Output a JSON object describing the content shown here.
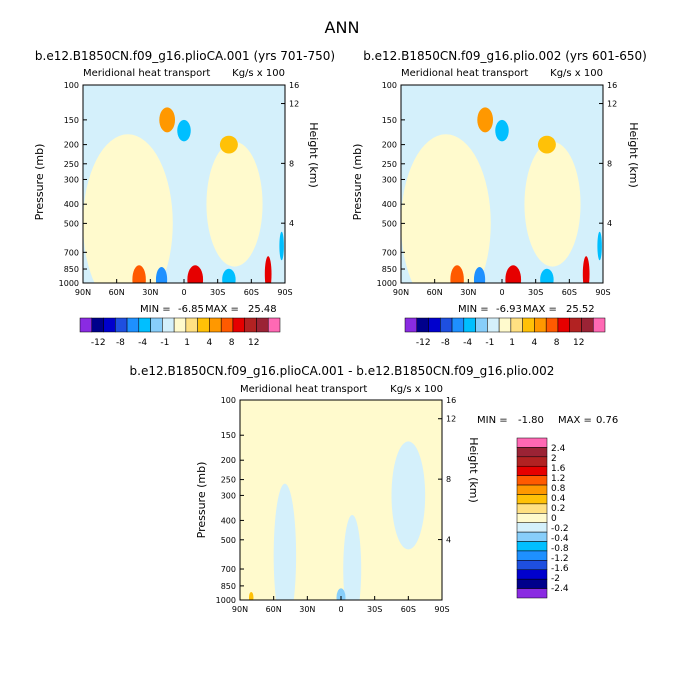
{
  "page_title": "ANN",
  "palette": {
    "main": [
      "#8a2be2",
      "#00008b",
      "#0000cd",
      "#1e4fe0",
      "#1e90ff",
      "#00bfff",
      "#87cefa",
      "#d4f0fb",
      "#fffacd",
      "#ffe082",
      "#ffc107",
      "#ff9800",
      "#ff5a00",
      "#e60000",
      "#b22222",
      "#9b2335",
      "#ff69b4"
    ],
    "diff": [
      "#8a2be2",
      "#00008b",
      "#0000cd",
      "#1e4fe0",
      "#1e90ff",
      "#00bfff",
      "#87cefa",
      "#d4f0fb",
      "#fffacd",
      "#ffe082",
      "#ffc107",
      "#ff9800",
      "#ff5a00",
      "#e60000",
      "#b22222",
      "#9b2335",
      "#ff69b4"
    ]
  },
  "chart_data": [
    {
      "type": "heatmap",
      "id": "p1",
      "title": "b.e12.B1850CN.f09_g16.plioCA.001 (yrs 701-750)",
      "subtitle_left": "Meridional heat transport",
      "subtitle_right": "Kg/s x 100",
      "xlabel": "",
      "ylabel": "Pressure (mb)",
      "ylabel_right": "Height (km)",
      "x_ticks": [
        "90N",
        "60N",
        "30N",
        "0",
        "30S",
        "60S",
        "90S"
      ],
      "x_tick_values": [
        90,
        60,
        30,
        0,
        -30,
        -60,
        -90
      ],
      "y_ticks": [
        "100",
        "150",
        "200",
        "250",
        "300",
        "400",
        "500",
        "700",
        "850",
        "1000"
      ],
      "y_tick_values": [
        100,
        150,
        200,
        250,
        300,
        400,
        500,
        700,
        850,
        1000
      ],
      "y_right_ticks": [
        "16",
        "12",
        "8",
        "4"
      ],
      "y_right_values": [
        16,
        12,
        8,
        4
      ],
      "min_label": "MIN =",
      "min_value": "-6.85",
      "max_label": "MAX =",
      "max_value": "25.48",
      "colorbar_labels": [
        "-12",
        "-8",
        "-4",
        "-1",
        "1",
        "4",
        "8",
        "12"
      ],
      "background": "#d4f0fb",
      "blobs": [
        {
          "lat": 15,
          "p": 150,
          "w": 7,
          "h": 70,
          "c": 11
        },
        {
          "lat": 0,
          "p": 170,
          "w": 6,
          "h": 60,
          "c": 5
        },
        {
          "lat": -40,
          "p": 200,
          "w": 8,
          "h": 50,
          "c": 10
        },
        {
          "lat": 40,
          "p": 960,
          "w": 6,
          "h": 80,
          "c": 12
        },
        {
          "lat": 20,
          "p": 960,
          "w": 5,
          "h": 70,
          "c": 4
        },
        {
          "lat": -10,
          "p": 960,
          "w": 7,
          "h": 80,
          "c": 13
        },
        {
          "lat": -40,
          "p": 960,
          "w": 6,
          "h": 60,
          "c": 5
        },
        {
          "lat": -75,
          "p": 900,
          "w": 3,
          "h": 100,
          "c": 13
        },
        {
          "lat": -87,
          "p": 650,
          "w": 2,
          "h": 80,
          "c": 5
        }
      ],
      "yellow_regions": [
        {
          "lat": 50,
          "p": 500,
          "w": 40,
          "h": 500,
          "c": 8
        },
        {
          "lat": -45,
          "p": 400,
          "w": 25,
          "h": 350,
          "c": 8
        }
      ]
    },
    {
      "type": "heatmap",
      "id": "p2",
      "title": "b.e12.B1850CN.f09_g16.plio.002 (yrs 601-650)",
      "subtitle_left": "Meridional heat transport",
      "subtitle_right": "Kg/s x 100",
      "xlabel": "",
      "ylabel": "Pressure (mb)",
      "ylabel_right": "Height (km)",
      "x_ticks": [
        "90N",
        "60N",
        "30N",
        "0",
        "30S",
        "60S",
        "90S"
      ],
      "x_tick_values": [
        90,
        60,
        30,
        0,
        -30,
        -60,
        -90
      ],
      "y_ticks": [
        "100",
        "150",
        "200",
        "250",
        "300",
        "400",
        "500",
        "700",
        "850",
        "1000"
      ],
      "y_tick_values": [
        100,
        150,
        200,
        250,
        300,
        400,
        500,
        700,
        850,
        1000
      ],
      "y_right_ticks": [
        "16",
        "12",
        "8",
        "4"
      ],
      "y_right_values": [
        16,
        12,
        8,
        4
      ],
      "min_label": "MIN =",
      "min_value": "-6.93",
      "max_label": "MAX =",
      "max_value": "25.52",
      "colorbar_labels": [
        "-12",
        "-8",
        "-4",
        "-1",
        "1",
        "4",
        "8",
        "12"
      ],
      "background": "#d4f0fb",
      "blobs": [
        {
          "lat": 15,
          "p": 150,
          "w": 7,
          "h": 70,
          "c": 11
        },
        {
          "lat": 0,
          "p": 170,
          "w": 6,
          "h": 60,
          "c": 5
        },
        {
          "lat": -40,
          "p": 200,
          "w": 8,
          "h": 50,
          "c": 10
        },
        {
          "lat": 40,
          "p": 960,
          "w": 6,
          "h": 80,
          "c": 12
        },
        {
          "lat": 20,
          "p": 960,
          "w": 5,
          "h": 70,
          "c": 4
        },
        {
          "lat": -10,
          "p": 960,
          "w": 7,
          "h": 80,
          "c": 13
        },
        {
          "lat": -40,
          "p": 960,
          "w": 6,
          "h": 60,
          "c": 5
        },
        {
          "lat": -75,
          "p": 900,
          "w": 3,
          "h": 100,
          "c": 13
        },
        {
          "lat": -87,
          "p": 650,
          "w": 2,
          "h": 80,
          "c": 5
        }
      ],
      "yellow_regions": [
        {
          "lat": 50,
          "p": 500,
          "w": 40,
          "h": 500,
          "c": 8
        },
        {
          "lat": -45,
          "p": 400,
          "w": 25,
          "h": 350,
          "c": 8
        }
      ]
    },
    {
      "type": "heatmap",
      "id": "p3",
      "title": "b.e12.B1850CN.f09_g16.plioCA.001 - b.e12.B1850CN.f09_g16.plio.002",
      "subtitle_left": "Meridional heat transport",
      "subtitle_right": "Kg/s x 100",
      "xlabel": "",
      "ylabel": "Pressure (mb)",
      "ylabel_right": "Height (km)",
      "x_ticks": [
        "90N",
        "60N",
        "30N",
        "0",
        "30S",
        "60S",
        "90S"
      ],
      "x_tick_values": [
        90,
        60,
        30,
        0,
        -30,
        -60,
        -90
      ],
      "y_ticks": [
        "100",
        "150",
        "200",
        "250",
        "300",
        "400",
        "500",
        "700",
        "850",
        "1000"
      ],
      "y_tick_values": [
        100,
        150,
        200,
        250,
        300,
        400,
        500,
        700,
        850,
        1000
      ],
      "y_right_ticks": [
        "16",
        "12",
        "8",
        "4"
      ],
      "y_right_values": [
        16,
        12,
        8,
        4
      ],
      "min_label": "MIN =",
      "min_value": "-1.80",
      "max_label": "MAX =",
      "max_value": "0.76",
      "colorbar_labels": [
        "2.4",
        "2",
        "1.6",
        "1.2",
        "0.8",
        "0.4",
        "0.2",
        "0",
        "-0.2",
        "-0.4",
        "-0.8",
        "-1.2",
        "-1.6",
        "-2",
        "-2.4"
      ],
      "background": "#fffacd",
      "blobs": [
        {
          "lat": 0,
          "p": 970,
          "w": 4,
          "h": 50,
          "c": 6
        },
        {
          "lat": 80,
          "p": 970,
          "w": 2,
          "h": 30,
          "c": 10
        }
      ],
      "blue_regions": [
        {
          "lat": 50,
          "p": 600,
          "w": 10,
          "h": 400,
          "c": 7
        },
        {
          "lat": -10,
          "p": 700,
          "w": 8,
          "h": 300,
          "c": 7
        },
        {
          "lat": -60,
          "p": 300,
          "w": 15,
          "h": 300,
          "c": 7
        }
      ]
    }
  ]
}
